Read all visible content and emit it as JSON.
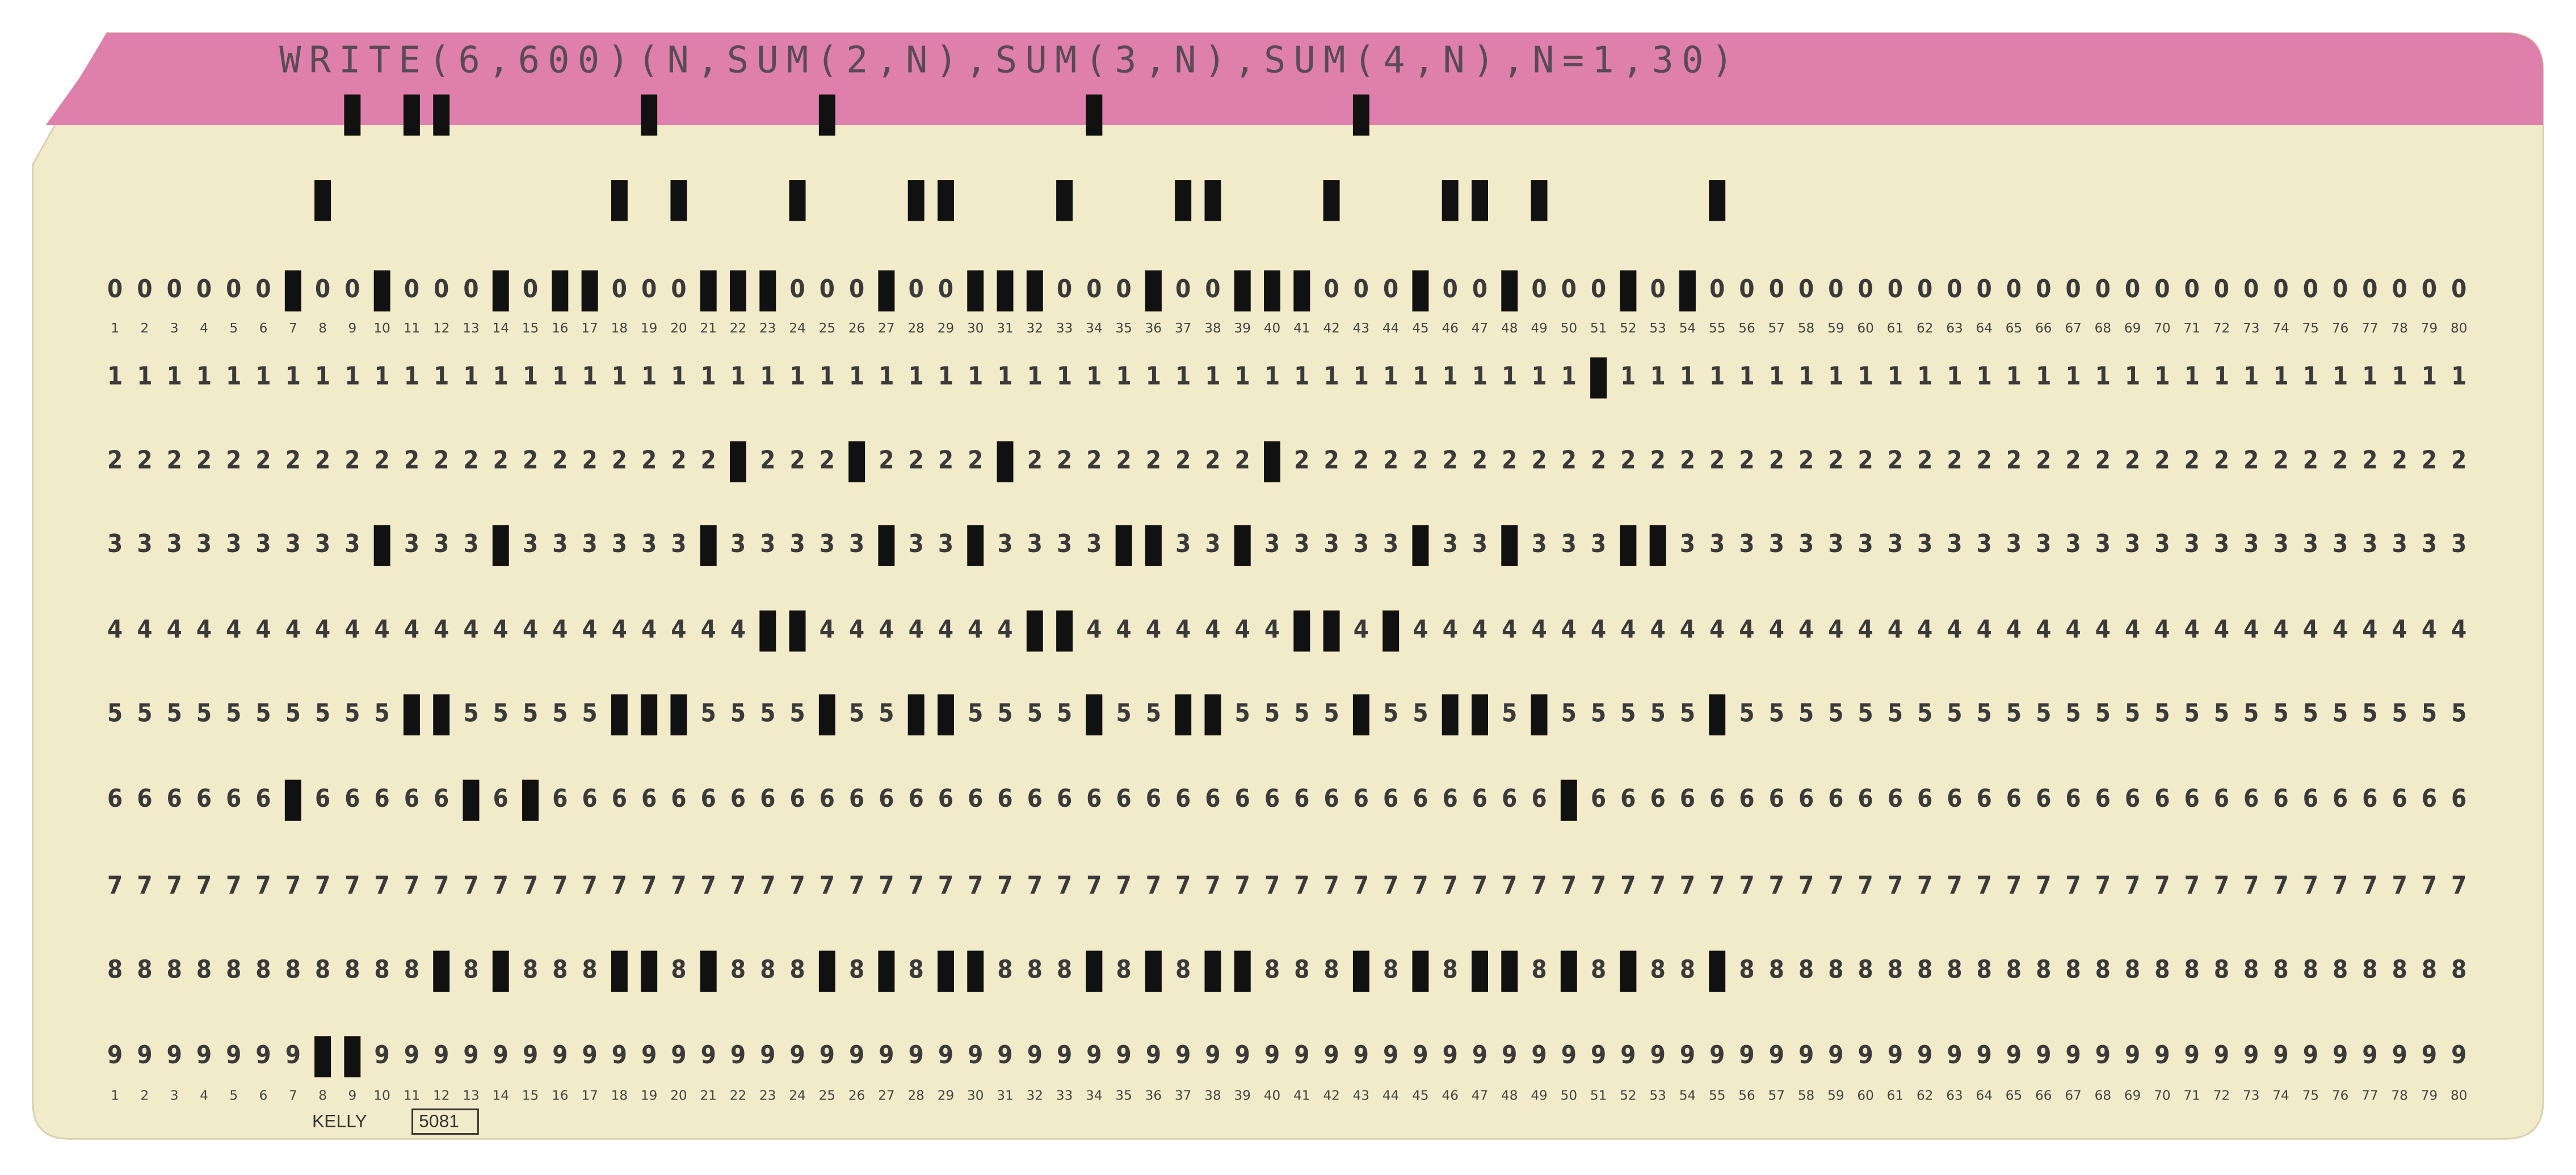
{
  "card": {
    "interpretation": "WRITE(6,600)(N,SUM(2,N),SUM(3,N),SUM(4,N),N=1,30)",
    "digit_rows": [
      "0",
      "1",
      "2",
      "3",
      "4",
      "5",
      "6",
      "7",
      "8",
      "9"
    ],
    "column_numbers": [
      1,
      2,
      3,
      4,
      5,
      6,
      7,
      8,
      9,
      10,
      11,
      12,
      13,
      14,
      15,
      16,
      17,
      18,
      19,
      20,
      21,
      22,
      23,
      24,
      25,
      26,
      27,
      28,
      29,
      30,
      31,
      32,
      33,
      34,
      35,
      36,
      37,
      38,
      39,
      40,
      41,
      42,
      43,
      44,
      45,
      46,
      47,
      48,
      49,
      50,
      51,
      52,
      53,
      54,
      55,
      56,
      57,
      58,
      59,
      60,
      61,
      62,
      63,
      64,
      65,
      66,
      67,
      68,
      69,
      70,
      71,
      72,
      73,
      74,
      75,
      76,
      77,
      78,
      79,
      80
    ],
    "maker": "KELLY",
    "form_number": "5081"
  }
}
